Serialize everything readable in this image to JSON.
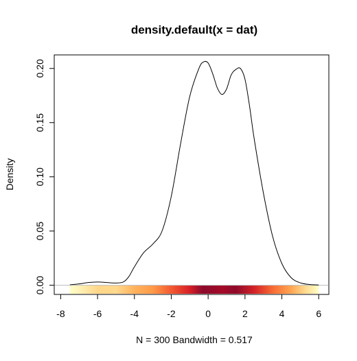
{
  "chart_data": {
    "type": "line",
    "title": "density.default(x = dat)",
    "xlabel": "N = 300   Bandwidth = 0.517",
    "ylabel": "Density",
    "xlim": [
      -8.35,
      6.55
    ],
    "ylim": [
      -0.0085,
      0.2125
    ],
    "x_ticks": [
      "-8",
      "-6",
      "-4",
      "-2",
      "0",
      "2",
      "4",
      "6"
    ],
    "y_ticks": [
      "0.00",
      "0.05",
      "0.10",
      "0.15",
      "0.20"
    ],
    "grid": false,
    "legend": "none",
    "baseline": 0,
    "line_color": "#000000",
    "baseline_color": "#bbbbbb",
    "density": {
      "x": [
        -7.5,
        -7,
        -6.5,
        -6,
        -5.5,
        -5,
        -4.6,
        -4.3,
        -4,
        -3.5,
        -3,
        -2.5,
        -2,
        -1.5,
        -1,
        -0.5,
        -0.25,
        0,
        0.25,
        0.5,
        0.75,
        1,
        1.25,
        1.5,
        1.75,
        2,
        2.25,
        2.5,
        3,
        3.5,
        4,
        4.5,
        5,
        5.5,
        6
      ],
      "y": [
        0.0004,
        0.0012,
        0.0025,
        0.003,
        0.0025,
        0.002,
        0.003,
        0.008,
        0.017,
        0.03,
        0.038,
        0.05,
        0.082,
        0.13,
        0.174,
        0.2,
        0.206,
        0.205,
        0.195,
        0.182,
        0.176,
        0.181,
        0.194,
        0.199,
        0.2,
        0.19,
        0.165,
        0.135,
        0.085,
        0.045,
        0.02,
        0.007,
        0.0022,
        0.0007,
        0.0002
      ]
    },
    "rug_heat": {
      "x_range": [
        -7.5,
        6
      ],
      "colors": [
        {
          "x": -7.5,
          "color": "#ffffc8"
        },
        {
          "x": -7,
          "color": "#fff2b8"
        },
        {
          "x": -6,
          "color": "#ffd78a"
        },
        {
          "x": -5,
          "color": "#ffd98e"
        },
        {
          "x": -4,
          "color": "#ffb25e"
        },
        {
          "x": -3,
          "color": "#ff9a48"
        },
        {
          "x": -2,
          "color": "#f25a30"
        },
        {
          "x": -1,
          "color": "#d71f26"
        },
        {
          "x": -0.3,
          "color": "#8b0a2a"
        },
        {
          "x": 0.8,
          "color": "#a30a28"
        },
        {
          "x": 1.5,
          "color": "#8e0a2a"
        },
        {
          "x": 2.5,
          "color": "#d42227"
        },
        {
          "x": 3.5,
          "color": "#f76b34"
        },
        {
          "x": 4.5,
          "color": "#ffa552"
        },
        {
          "x": 5.2,
          "color": "#ffd68a"
        },
        {
          "x": 6,
          "color": "#ffffc8"
        }
      ]
    }
  }
}
